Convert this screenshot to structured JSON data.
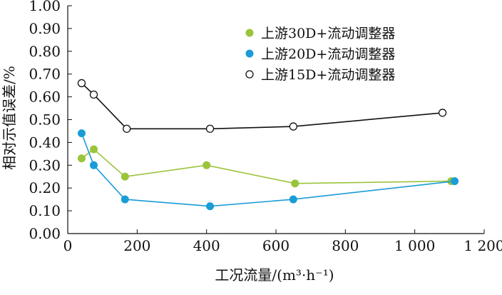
{
  "chart_data": {
    "type": "line",
    "xlabel": "工况流量/(m³·h⁻¹)",
    "ylabel": "相对示值误差/%",
    "xlim": [
      0,
      1200
    ],
    "ylim": [
      0,
      1
    ],
    "x_ticks": [
      0,
      200,
      400,
      600,
      800,
      1000,
      1200
    ],
    "x_tick_labels": [
      "0",
      "200",
      "400",
      "600",
      "800",
      "1 000",
      "1 200"
    ],
    "y_ticks": [
      0,
      0.1,
      0.2,
      0.3,
      0.4,
      0.5,
      0.6,
      0.7,
      0.8,
      0.9,
      1.0
    ],
    "y_tick_labels": [
      "0.00",
      "0.10",
      "0.20",
      "0.30",
      "0.40",
      "0.50",
      "0.60",
      "0.70",
      "0.80",
      "0.90",
      "1.00"
    ],
    "legend_position": "top-right",
    "series": [
      {
        "name": "上游30D+流动调整器",
        "color": "#9ac43a",
        "marker": "filled",
        "x": [
          40,
          75,
          165,
          400,
          655,
          1105
        ],
        "y": [
          0.33,
          0.37,
          0.25,
          0.3,
          0.22,
          0.23
        ]
      },
      {
        "name": "上游20D+流动调整器",
        "color": "#1a9cd6",
        "marker": "filled",
        "x": [
          40,
          75,
          165,
          410,
          650,
          1115
        ],
        "y": [
          0.44,
          0.3,
          0.15,
          0.12,
          0.15,
          0.23
        ]
      },
      {
        "name": "上游15D+流动调整器",
        "color": "#111111",
        "marker": "hollow",
        "x": [
          40,
          75,
          170,
          410,
          650,
          1080
        ],
        "y": [
          0.66,
          0.61,
          0.46,
          0.46,
          0.47,
          0.53
        ]
      }
    ]
  }
}
